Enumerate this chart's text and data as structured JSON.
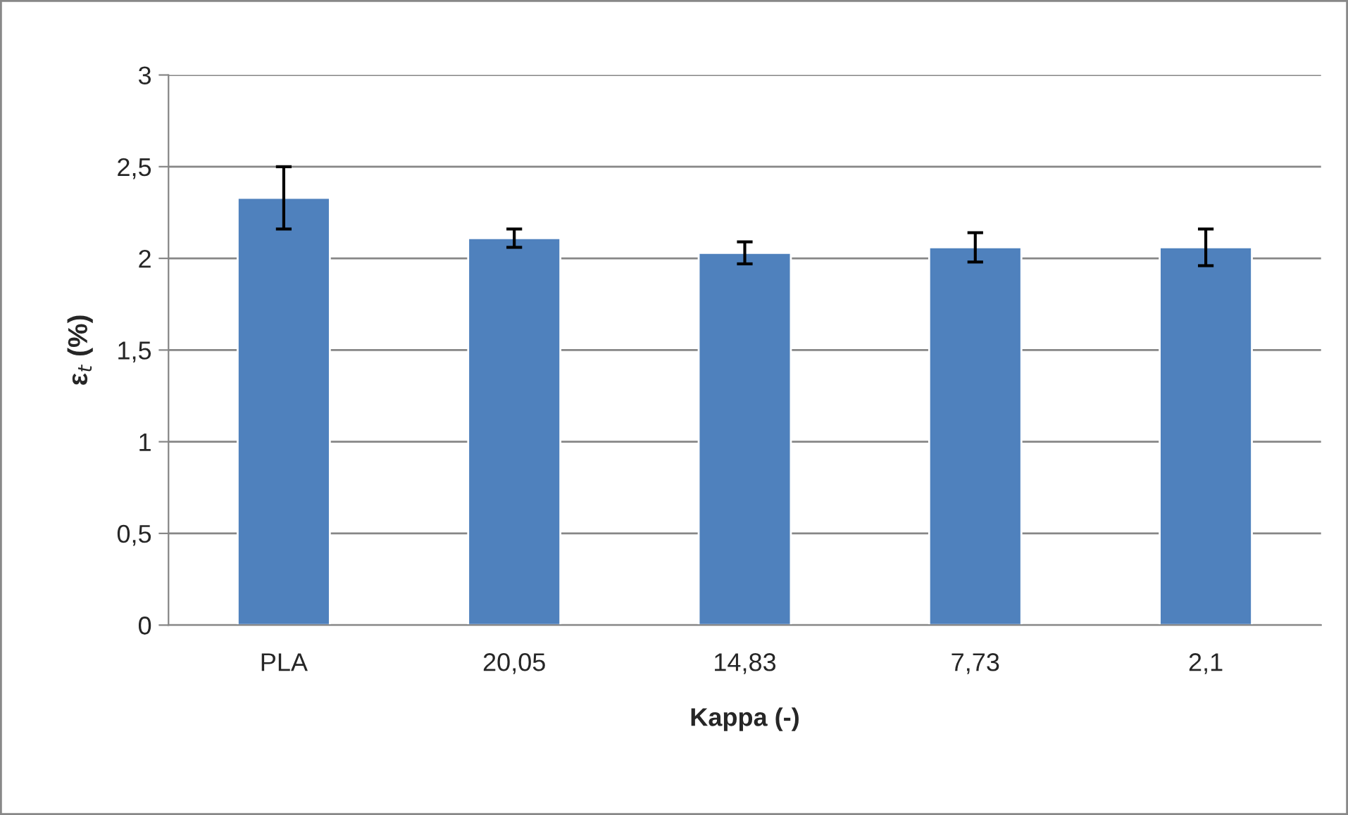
{
  "chart_data": {
    "type": "bar",
    "xlabel": "Kappa (-)",
    "ylabel": "ε$_{t}$ (%)",
    "categories": [
      "PLA",
      "20,05",
      "14,83",
      "7,73",
      "2,1"
    ],
    "values": [
      2.33,
      2.11,
      2.03,
      2.06,
      2.06
    ],
    "errors": [
      0.17,
      0.05,
      0.06,
      0.08,
      0.1
    ],
    "color": "#4f81bd",
    "ylim": [
      0,
      3
    ],
    "yticks": [
      0,
      {
        "value": 0.5,
        "label": "0,5"
      },
      1,
      {
        "value": 1.5,
        "label": "1,5"
      },
      2,
      {
        "value": 2.5,
        "label": "2,5"
      },
      3
    ],
    "grid": "y",
    "legend": false
  }
}
